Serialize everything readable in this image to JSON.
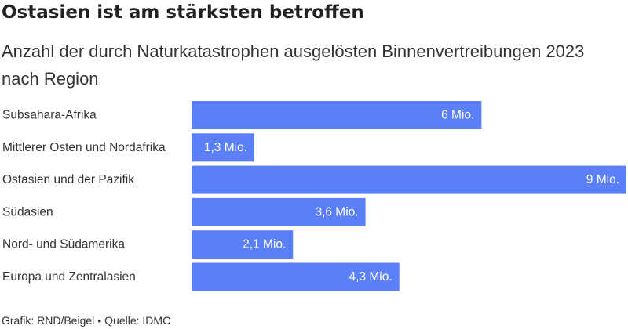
{
  "title": "Ostasien ist am stärksten betroffen",
  "subtitle": "Anzahl der durch Naturkatastrophen ausgelösten Binnenvertreibungen 2023 nach Region",
  "footer": {
    "credit": "Grafik: RND/Beigel",
    "separator": "•",
    "source": "Quelle: IDMC"
  },
  "colors": {
    "bar": "#5b7ff6",
    "bar_label": "#ffffff",
    "text": "#333333"
  },
  "chart_data": {
    "type": "bar",
    "orientation": "horizontal",
    "categories": [
      "Subsahara-Afrika",
      "Mittlerer Osten und Nordafrika",
      "Ostasien und der Pazifik",
      "Südasien",
      "Nord- und Südamerika",
      "Europa und Zentralasien"
    ],
    "values": [
      6,
      1.3,
      9,
      3.6,
      2.1,
      4.3
    ],
    "value_labels": [
      "6 Mio.",
      "1,3 Mio.",
      "9 Mio.",
      "3,6 Mio.",
      "2,1 Mio.",
      "4,3 Mio."
    ],
    "unit": "Mio.",
    "xlim": [
      0,
      9
    ],
    "grid": false,
    "legend": "none"
  }
}
